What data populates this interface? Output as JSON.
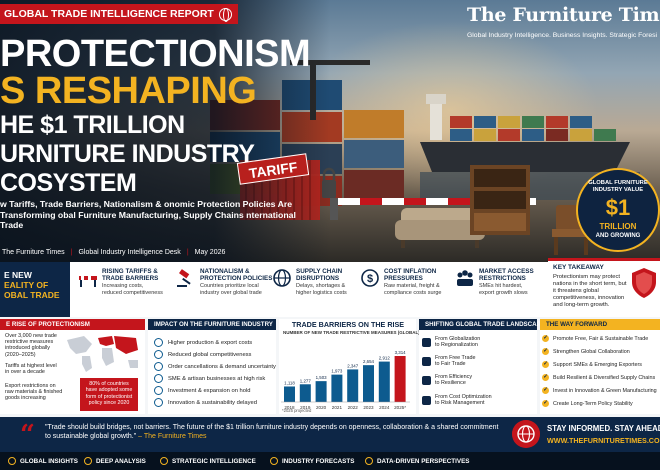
{
  "header": {
    "report_tag": "GLOBAL TRADE INTELLIGENCE REPORT",
    "masthead": "The Furniture Times",
    "masthead_sub": "Global Industry Intelligence. Business Insights. Strategic Foresi"
  },
  "hero": {
    "line1": "PROTECTIONISM",
    "line2": "S RESHAPING",
    "line3": "HE $1 TRILLION",
    "line4": "URNITURE INDUSTRY",
    "line5": "COSYSTEM",
    "dek": "w Tariffs, Trade Barriers, Nationalism & onomic Protection Policies Are Transforming obal Furniture Manufacturing, Supply Chains nternational Trade",
    "byline_source": "The Furniture Times",
    "byline_desk": "Global Industry Intelligence Desk",
    "byline_date": "May 2026",
    "sign_text": "TARIFF"
  },
  "badge": {
    "top": "GLOBAL FURNITURE INDUSTRY VALUE",
    "big": "$1",
    "mid": "TRILLION",
    "bot": "AND GROWING"
  },
  "strip": {
    "new_reality_1": "E NEW",
    "new_reality_2": "EALITY OF",
    "new_reality_3": "OBAL TRADE",
    "items": [
      {
        "title1": "RISING TARIFFS &",
        "title2": "TRADE BARRIERS",
        "sub1": "Increasing costs,",
        "sub2": "reduced competitiveness"
      },
      {
        "title1": "NATIONALISM &",
        "title2": "PROTECTION POLICIES",
        "sub1": "Countries prioritize local",
        "sub2": "industry over global trade"
      },
      {
        "title1": "SUPPLY CHAIN",
        "title2": "DISRUPTIONS",
        "sub1": "Delays, shortages &",
        "sub2": "higher logistics costs"
      },
      {
        "title1": "COST INFLATION",
        "title2": "PRESSURES",
        "sub1": "Raw material, freight &",
        "sub2": "compliance costs surge"
      },
      {
        "title1": "MARKET ACCESS",
        "title2": "RESTRICTIONS",
        "sub1": "SMEs hit hardest,",
        "sub2": "export growth slows"
      }
    ],
    "key_takeaway_title": "KEY TAKEAWAY",
    "key_takeaway_body": "Protectionism may protect nations in the short term, but it threatens global competitiveness, innovation and long-term growth."
  },
  "rise_panel": {
    "title": "E RISE OF PROTECTIONISM",
    "items": [
      "Over 3,000 new trade restrictive measures introduced globally (2020–2025)",
      "Tariffs at highest level in over a decade",
      "Export restrictions on raw materials & finished goods increasing"
    ],
    "callout": "80% of countries have adopted some form of protectionist policy since 2020"
  },
  "impact_panel": {
    "title": "IMPACT ON THE FURNITURE INDUSTRY",
    "items": [
      "Higher production & export costs",
      "Reduced global competitiveness",
      "Order cancellations & demand uncertainty",
      "SME & artisan businesses at high risk",
      "Investment & expansion on hold",
      "Innovation & sustainability delayed"
    ]
  },
  "chart_data": {
    "type": "bar",
    "title": "TRADE BARRIERS ON THE RISE",
    "subtitle": "NUMBER OF NEW TRADE RESTRICTIVE MEASURES (GLOBAL)",
    "categories": [
      "2018",
      "2019",
      "2020",
      "2021",
      "2022",
      "2023",
      "2024",
      "2025*"
    ],
    "values": [
      1118,
      1277,
      1503,
      1973,
      2347,
      2654,
      2912,
      3314
    ],
    "value_labels": [
      "1,118",
      "1,277",
      "1,503",
      "1,973",
      "2,347",
      "2,654",
      "2,912",
      "3,314"
    ],
    "footnote": "*2025 projected",
    "colors": {
      "main": "#0d5b8f",
      "last": "#c4151c"
    }
  },
  "shift_panel": {
    "title": "SHIFTING GLOBAL TRADE LANDSCAPE",
    "items": [
      {
        "a": "From Globalization",
        "b": "to Regionalization"
      },
      {
        "a": "From Free Trade",
        "b": "to Fair Trade"
      },
      {
        "a": "From Efficiency",
        "b": "to Resilience"
      },
      {
        "a": "From Cost Optimization",
        "b": "to Risk Management"
      }
    ]
  },
  "forward_panel": {
    "title": "THE WAY FORWARD",
    "items": [
      "Promote Free, Fair & Sustainable Trade",
      "Strengthen Global Collaboration",
      "Support SMEs & Emerging Exporters",
      "Build Resilient & Diversified Supply Chains",
      "Invest in Innovation & Green Manufacturing",
      "Create Long-Term Policy Stability"
    ]
  },
  "quote": {
    "text": "\"Trade should build bridges, not barriers. The future of the $1 trillion furniture industry depends on openness, collaboration & a shared commitment to sustainable global growth.\"",
    "attribution": "– The Furniture Times",
    "stay": "STAY INFORMED. STAY AHEAD.",
    "url": "WWW.THEFURNITURETIMES.COM"
  },
  "footer": {
    "items": [
      "GLOBAL INSIGHTS",
      "DEEP ANALYSIS",
      "STRATEGIC INTELLIGENCE",
      "INDUSTRY FORECASTS",
      "DATA-DRIVEN PERSPECTIVES"
    ]
  },
  "colors": {
    "navy": "#0d2646",
    "red": "#c4151c",
    "gold": "#f3b321"
  }
}
